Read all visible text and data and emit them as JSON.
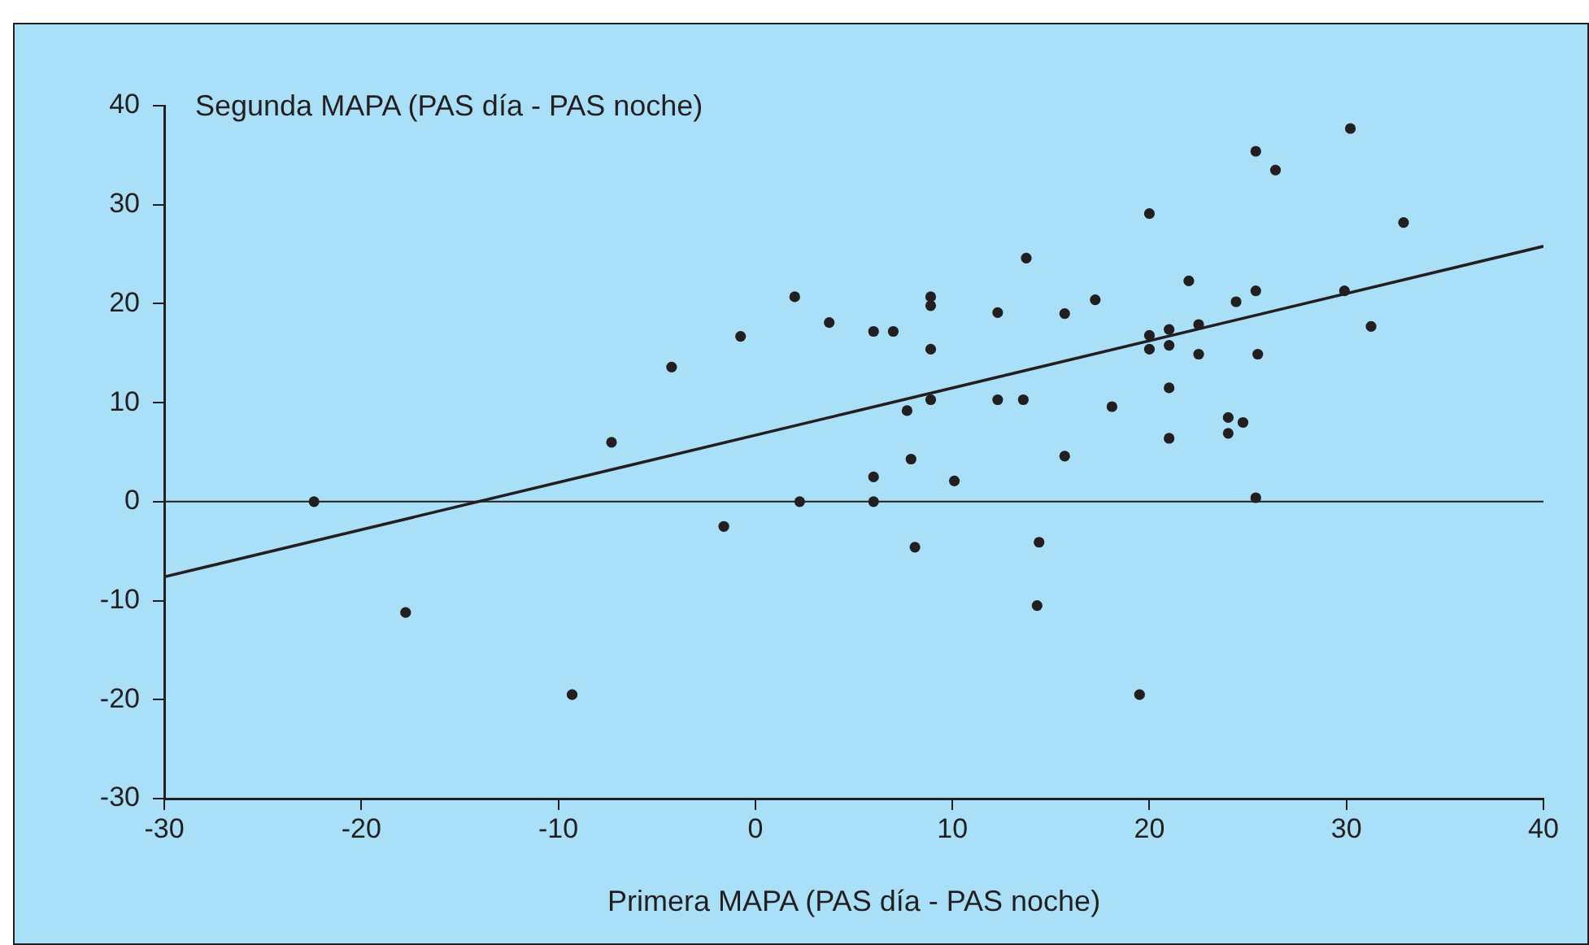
{
  "chart_data": {
    "type": "scatter",
    "xlabel": "Primera MAPA (PAS día - PAS noche)",
    "ylabel": "Segunda MAPA (PAS día - PAS noche)",
    "xlim": [
      -30,
      40
    ],
    "ylim": [
      -30,
      40
    ],
    "xticks": [
      -30,
      -20,
      -10,
      0,
      10,
      20,
      30,
      40
    ],
    "yticks": [
      -30,
      -20,
      -10,
      0,
      10,
      20,
      30,
      40
    ],
    "grid": false,
    "legend": false,
    "marker": "circle",
    "ref_lines": [
      {
        "axis": "y",
        "value": 0,
        "color": "#231f20"
      }
    ],
    "series": [
      {
        "color": "#231f20",
        "x": [
          -22.4,
          -17.75,
          -9.3,
          -7.3,
          -4.25,
          -1.6,
          -0.75,
          2.0,
          2.25,
          3.75,
          6.0,
          6.0,
          6.0,
          7.0,
          7.7,
          7.9,
          8.1,
          8.9,
          8.9,
          8.9,
          8.9,
          10.1,
          12.3,
          12.3,
          13.6,
          13.75,
          14.4,
          14.3,
          15.7,
          15.7,
          17.25,
          18.1,
          20.0,
          20.0,
          20.0,
          19.5,
          21.0,
          21.0,
          21.0,
          21.0,
          22.0,
          22.5,
          22.5,
          24.0,
          24.0,
          24.75,
          24.4,
          25.4,
          25.4,
          25.5,
          25.4,
          26.4,
          29.9,
          30.2,
          31.25,
          32.9
        ],
        "values": [
          0,
          -11.2,
          -19.5,
          6.0,
          13.6,
          -2.5,
          16.7,
          20.7,
          0,
          18.1,
          17.2,
          2.5,
          0,
          17.2,
          9.2,
          4.3,
          -4.6,
          20.7,
          19.8,
          15.4,
          10.3,
          2.1,
          19.1,
          10.3,
          10.3,
          24.6,
          -4.1,
          -10.5,
          19.0,
          4.6,
          20.4,
          9.6,
          29.1,
          16.8,
          15.4,
          -19.5,
          17.4,
          15.8,
          11.5,
          6.4,
          22.3,
          17.9,
          14.9,
          8.5,
          6.9,
          8.0,
          20.2,
          35.4,
          21.3,
          14.9,
          0.4,
          33.5,
          21.3,
          37.7,
          17.7,
          28.2
        ]
      },
      {
        "type": "line",
        "color": "#231f20",
        "marker": "none",
        "x": [
          -30,
          40
        ],
        "values": [
          -7.6,
          25.8
        ]
      }
    ]
  }
}
